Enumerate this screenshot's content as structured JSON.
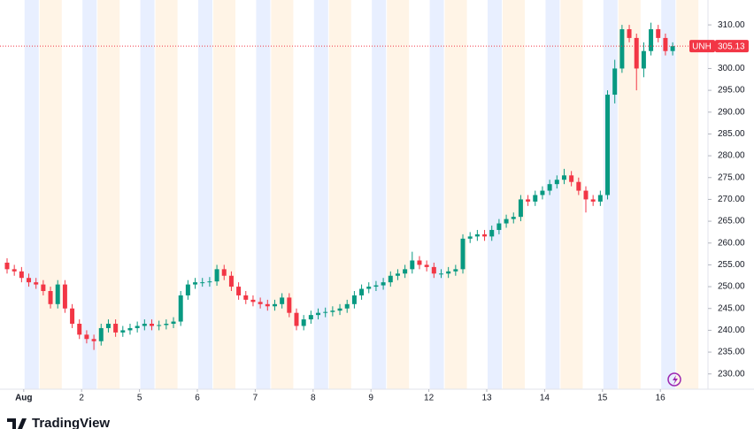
{
  "chart_data": {
    "type": "candlestick",
    "symbol": "UNH",
    "last_price": 305.13,
    "branding": "TradingView",
    "up_color": "#089981",
    "down_color": "#f23645",
    "ylim": [
      226.5,
      315.7
    ],
    "yticks": [
      {
        "value": 230,
        "label": "230.00"
      },
      {
        "value": 235,
        "label": "235.00"
      },
      {
        "value": 240,
        "label": "240.00"
      },
      {
        "value": 245,
        "label": "245.00"
      },
      {
        "value": 250,
        "label": "250.00"
      },
      {
        "value": 255,
        "label": "255.00"
      },
      {
        "value": 260,
        "label": "260.00"
      },
      {
        "value": 265,
        "label": "265.00"
      },
      {
        "value": 270,
        "label": "270.00"
      },
      {
        "value": 275,
        "label": "275.00"
      },
      {
        "value": 280,
        "label": "280.00"
      },
      {
        "value": 285,
        "label": "285.00"
      },
      {
        "value": 290,
        "label": "290.00"
      },
      {
        "value": 295,
        "label": "295.00"
      },
      {
        "value": 300,
        "label": "300.00"
      },
      {
        "value": 305,
        "label": "305.00"
      },
      {
        "value": 310,
        "label": "310.00"
      }
    ],
    "xticks": [
      {
        "value": 2.3,
        "label": "Aug"
      },
      {
        "value": 10.3,
        "label": "2"
      },
      {
        "value": 18.3,
        "label": "5"
      },
      {
        "value": 26.3,
        "label": "6"
      },
      {
        "value": 34.3,
        "label": "7"
      },
      {
        "value": 42.3,
        "label": "8"
      },
      {
        "value": 50.3,
        "label": "9"
      },
      {
        "value": 58.3,
        "label": "12"
      },
      {
        "value": 66.3,
        "label": "13"
      },
      {
        "value": 74.3,
        "label": "14"
      },
      {
        "value": 82.3,
        "label": "15"
      },
      {
        "value": 90.3,
        "label": "16"
      }
    ],
    "open": [
      255.5,
      254,
      253.5,
      252,
      251,
      250.5,
      249,
      246,
      250.5,
      245,
      241.5,
      239,
      238,
      237.5,
      240.5,
      241.5,
      239.5,
      240,
      240.5,
      241,
      241.5,
      241,
      241.2,
      241.5,
      242,
      248,
      250.5,
      251,
      251,
      251.2,
      254,
      252.5,
      250,
      248,
      247,
      246.5,
      246,
      245.5,
      246,
      247.5,
      244,
      241,
      242.5,
      243.5,
      244,
      244.2,
      244.5,
      245,
      246,
      248,
      249.5,
      250,
      250.3,
      251,
      252.5,
      253,
      254,
      256,
      255,
      254.5,
      253,
      253,
      253.5,
      254,
      261,
      261.5,
      262,
      261.5,
      263,
      264.5,
      265.5,
      266,
      270,
      269.5,
      271,
      272,
      273.5,
      274.5,
      275.5,
      274,
      272,
      270,
      269.5,
      271,
      294,
      300,
      309,
      307,
      300,
      304,
      309,
      307,
      304
    ],
    "high": [
      256.5,
      255,
      254.5,
      253,
      252,
      251.5,
      250,
      251.5,
      251.5,
      246,
      242.5,
      240,
      239,
      241.5,
      242.5,
      242.5,
      241,
      241.5,
      242,
      242.5,
      242.5,
      242.2,
      242.5,
      243,
      249,
      251.5,
      252,
      252,
      252.2,
      255,
      255,
      253.5,
      251,
      249,
      248,
      247.5,
      247,
      247,
      248.5,
      248.5,
      245,
      243.5,
      244.5,
      245,
      245.2,
      245.5,
      246,
      247,
      249,
      250.5,
      251,
      251.3,
      252,
      253.5,
      254,
      255,
      258,
      257,
      256,
      255.5,
      254,
      254.5,
      255,
      262,
      262.5,
      263,
      263,
      264,
      265.5,
      266.5,
      267,
      271,
      271,
      272,
      273,
      274.5,
      275.5,
      277,
      276.5,
      275,
      273,
      271,
      272,
      295,
      302,
      310,
      310,
      308,
      306,
      310.5,
      310,
      308,
      306
    ],
    "low": [
      253,
      252.5,
      251,
      250,
      249.5,
      248,
      245,
      245,
      244,
      240.5,
      238,
      237,
      235.5,
      236.5,
      239.5,
      238.5,
      238.5,
      239,
      239.5,
      240,
      240,
      240,
      240.2,
      240.5,
      241,
      247,
      249.5,
      250,
      250,
      250.2,
      251.5,
      249,
      247,
      246,
      245.5,
      245,
      244.5,
      244.5,
      245,
      243,
      240,
      240,
      241.5,
      242.5,
      243,
      243.2,
      243.5,
      244,
      245,
      247,
      248.5,
      249,
      249.3,
      250,
      251.5,
      252,
      253,
      254,
      253.5,
      252,
      252,
      252,
      252.5,
      253,
      260,
      260.5,
      260.5,
      260.5,
      262,
      263.5,
      264.5,
      265,
      268.5,
      268.5,
      270,
      271,
      272.5,
      273.5,
      273,
      271,
      267,
      268.5,
      268.5,
      270,
      292,
      299,
      306,
      295,
      298,
      303,
      306,
      303,
      303
    ],
    "close": [
      254,
      253.5,
      252,
      251,
      250.5,
      249,
      246,
      250.5,
      245,
      241.5,
      239,
      238,
      237.5,
      240.5,
      241.5,
      239.5,
      240,
      240.5,
      241,
      241.5,
      241,
      241.2,
      241.5,
      242,
      248,
      250.5,
      251,
      251,
      251.2,
      254,
      252.5,
      250,
      248,
      247,
      246.5,
      246,
      245.5,
      246,
      247.5,
      244,
      241,
      242.5,
      243.5,
      244,
      244.2,
      244.5,
      245,
      246,
      248,
      249.5,
      250,
      250.3,
      251,
      252.5,
      253,
      254,
      256,
      255,
      254.5,
      253,
      253,
      253.5,
      254,
      261,
      261.5,
      262,
      261.5,
      263,
      264.5,
      265.5,
      266,
      270,
      269.5,
      271,
      272,
      273.5,
      274.5,
      275.5,
      274,
      272,
      270,
      269.5,
      271,
      294,
      300,
      309,
      307,
      300,
      304,
      309,
      307,
      304,
      305.13
    ]
  }
}
